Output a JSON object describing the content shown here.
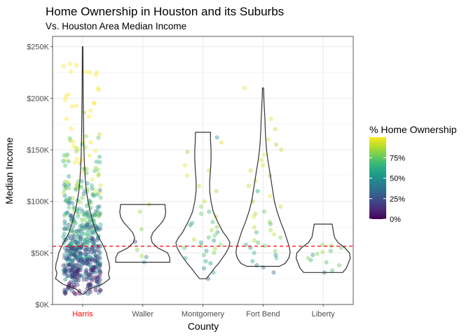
{
  "chart_data": {
    "type": "scatter",
    "subtype": "jittered scatter with violin overlays",
    "title": "Home Ownership in Houston and its Suburbs",
    "subtitle": "Vs. Houston Area Median Income",
    "xlabel": "County",
    "ylabel": "Median Income",
    "categories": [
      "Harris",
      "Waller",
      "Montgomery",
      "Fort Bend",
      "Liberty"
    ],
    "highlight_category": "Harris",
    "highlight_color": "#ff0000",
    "y_ticks": [
      {
        "value": 0,
        "label": "$0K"
      },
      {
        "value": 50000,
        "label": "$50K"
      },
      {
        "value": 100000,
        "label": "$100K"
      },
      {
        "value": 150000,
        "label": "$150K"
      },
      {
        "value": 200000,
        "label": "$200K"
      },
      {
        "value": 250000,
        "label": "$250K"
      }
    ],
    "ylim": [
      0,
      260000
    ],
    "reference_line": {
      "value": 56500,
      "style": "dashed",
      "color": "#ff0000"
    },
    "grid": true,
    "point_alpha": 0.4,
    "color_scale": {
      "name": "viridis",
      "title": "% Home Ownership",
      "range": [
        0,
        1
      ],
      "ticks": [
        {
          "value": 0.0,
          "label": "0%"
        },
        {
          "value": 0.25,
          "label": "25%"
        },
        {
          "value": 0.5,
          "label": "50%"
        },
        {
          "value": 0.75,
          "label": "75%"
        }
      ],
      "stops": [
        "#440154",
        "#482878",
        "#3e4a89",
        "#31688e",
        "#26828e",
        "#1f9e89",
        "#35b779",
        "#6ece58",
        "#b5de2b",
        "#fde725"
      ],
      "legend_placement": "right"
    },
    "violins": [
      {
        "category": "Harris",
        "min": 10000,
        "max": 250000,
        "density": [
          [
            10000,
            0.03
          ],
          [
            15000,
            0.25
          ],
          [
            20000,
            0.75
          ],
          [
            25000,
            1.0
          ],
          [
            30000,
            0.95
          ],
          [
            35000,
            1.0
          ],
          [
            40000,
            0.98
          ],
          [
            45000,
            0.92
          ],
          [
            50000,
            0.88
          ],
          [
            55000,
            0.8
          ],
          [
            60000,
            0.7
          ],
          [
            65000,
            0.6
          ],
          [
            70000,
            0.5
          ],
          [
            80000,
            0.38
          ],
          [
            90000,
            0.28
          ],
          [
            100000,
            0.2
          ],
          [
            110000,
            0.14
          ],
          [
            120000,
            0.1
          ],
          [
            140000,
            0.06
          ],
          [
            160000,
            0.04
          ],
          [
            180000,
            0.03
          ],
          [
            200000,
            0.02
          ],
          [
            225000,
            0.015
          ],
          [
            250000,
            0.01
          ]
        ]
      },
      {
        "category": "Waller",
        "min": 41000,
        "max": 97000,
        "density": [
          [
            41000,
            1.0
          ],
          [
            45000,
            1.0
          ],
          [
            50000,
            0.92
          ],
          [
            55000,
            0.55
          ],
          [
            60000,
            0.35
          ],
          [
            65000,
            0.3
          ],
          [
            70000,
            0.38
          ],
          [
            75000,
            0.55
          ],
          [
            80000,
            0.72
          ],
          [
            85000,
            0.82
          ],
          [
            90000,
            0.85
          ],
          [
            94000,
            0.83
          ],
          [
            97000,
            0.82
          ]
        ]
      },
      {
        "category": "Montgomery",
        "min": 25000,
        "max": 167000,
        "density": [
          [
            25000,
            0.12
          ],
          [
            30000,
            0.28
          ],
          [
            35000,
            0.42
          ],
          [
            40000,
            0.58
          ],
          [
            45000,
            0.72
          ],
          [
            50000,
            0.85
          ],
          [
            55000,
            0.95
          ],
          [
            60000,
            1.0
          ],
          [
            65000,
            0.9
          ],
          [
            70000,
            0.75
          ],
          [
            80000,
            0.55
          ],
          [
            90000,
            0.38
          ],
          [
            100000,
            0.3
          ],
          [
            110000,
            0.25
          ],
          [
            120000,
            0.25
          ],
          [
            130000,
            0.28
          ],
          [
            140000,
            0.3
          ],
          [
            150000,
            0.3
          ],
          [
            160000,
            0.28
          ],
          [
            167000,
            0.28
          ]
        ]
      },
      {
        "category": "Fort Bend",
        "min": 37000,
        "max": 210000,
        "density": [
          [
            37000,
            0.6
          ],
          [
            40000,
            0.82
          ],
          [
            45000,
            0.95
          ],
          [
            50000,
            1.0
          ],
          [
            55000,
            0.98
          ],
          [
            60000,
            0.92
          ],
          [
            70000,
            0.8
          ],
          [
            80000,
            0.65
          ],
          [
            90000,
            0.52
          ],
          [
            100000,
            0.42
          ],
          [
            110000,
            0.36
          ],
          [
            120000,
            0.3
          ],
          [
            130000,
            0.24
          ],
          [
            140000,
            0.18
          ],
          [
            150000,
            0.13
          ],
          [
            160000,
            0.1
          ],
          [
            170000,
            0.08
          ],
          [
            180000,
            0.07
          ],
          [
            190000,
            0.05
          ],
          [
            200000,
            0.03
          ],
          [
            210000,
            0.02
          ]
        ]
      },
      {
        "category": "Liberty",
        "min": 31000,
        "max": 78000,
        "density": [
          [
            31000,
            0.72
          ],
          [
            35000,
            0.85
          ],
          [
            40000,
            0.93
          ],
          [
            45000,
            1.0
          ],
          [
            50000,
            0.97
          ],
          [
            55000,
            0.8
          ],
          [
            60000,
            0.55
          ],
          [
            65000,
            0.42
          ],
          [
            70000,
            0.38
          ],
          [
            75000,
            0.35
          ],
          [
            78000,
            0.33
          ]
        ]
      }
    ],
    "points": [
      {
        "county": "Harris",
        "jitter": [
          -0.32,
          0.3
        ],
        "counts": [
          {
            "y": [
              10000,
              25000
            ],
            "n": 55
          },
          {
            "y": [
              25000,
              45000
            ],
            "n": 150
          },
          {
            "y": [
              45000,
              65000
            ],
            "n": 130
          },
          {
            "y": [
              65000,
              90000
            ],
            "n": 100
          },
          {
            "y": [
              90000,
              120000
            ],
            "n": 65
          },
          {
            "y": [
              120000,
              160000
            ],
            "n": 38
          },
          {
            "y": [
              160000,
              210000
            ],
            "n": 18
          },
          {
            "y": [
              210000,
              250000
            ],
            "n": 8
          }
        ],
        "ownership_vs_income": "increasing"
      },
      {
        "county": "Waller",
        "values": [
          [
            41000,
            0.55
          ],
          [
            46000,
            0.45
          ],
          [
            47000,
            0.85
          ],
          [
            53000,
            0.8
          ],
          [
            61000,
            0.2
          ],
          [
            73000,
            0.8
          ],
          [
            90000,
            0.85
          ],
          [
            97000,
            0.9
          ]
        ]
      },
      {
        "county": "Montgomery",
        "values": [
          [
            25000,
            0.25
          ],
          [
            31000,
            0.6
          ],
          [
            35000,
            0.5
          ],
          [
            40000,
            0.55
          ],
          [
            42000,
            0.6
          ],
          [
            45000,
            0.65
          ],
          [
            48000,
            0.7
          ],
          [
            50000,
            0.8
          ],
          [
            52000,
            0.55
          ],
          [
            54000,
            0.85
          ],
          [
            55000,
            0.7
          ],
          [
            57000,
            0.75
          ],
          [
            58000,
            0.8
          ],
          [
            60000,
            0.6
          ],
          [
            62000,
            0.5
          ],
          [
            63000,
            0.88
          ],
          [
            65000,
            0.7
          ],
          [
            67000,
            0.75
          ],
          [
            70000,
            0.6
          ],
          [
            72000,
            0.85
          ],
          [
            75000,
            0.8
          ],
          [
            77000,
            0.5
          ],
          [
            79000,
            0.6
          ],
          [
            80000,
            0.7
          ],
          [
            85000,
            0.9
          ],
          [
            88000,
            0.75
          ],
          [
            90000,
            0.65
          ],
          [
            95000,
            0.8
          ],
          [
            100000,
            0.9
          ],
          [
            110000,
            0.85
          ],
          [
            115000,
            0.9
          ],
          [
            125000,
            0.95
          ],
          [
            130000,
            0.9
          ],
          [
            135000,
            0.95
          ],
          [
            148000,
            0.85
          ],
          [
            157000,
            0.95
          ],
          [
            162000,
            0.55
          ]
        ]
      },
      {
        "county": "Fort Bend",
        "values": [
          [
            31000,
            0.3
          ],
          [
            36000,
            0.4
          ],
          [
            38000,
            0.45
          ],
          [
            42000,
            0.6
          ],
          [
            45000,
            0.7
          ],
          [
            48000,
            0.5
          ],
          [
            50000,
            0.65
          ],
          [
            52000,
            0.8
          ],
          [
            55000,
            0.55
          ],
          [
            57000,
            0.75
          ],
          [
            58000,
            0.6
          ],
          [
            60000,
            0.7
          ],
          [
            62000,
            0.85
          ],
          [
            65000,
            0.8
          ],
          [
            68000,
            0.9
          ],
          [
            70000,
            0.65
          ],
          [
            72000,
            0.85
          ],
          [
            75000,
            0.9
          ],
          [
            78000,
            0.7
          ],
          [
            80000,
            0.8
          ],
          [
            85000,
            0.95
          ],
          [
            88000,
            0.85
          ],
          [
            90000,
            0.75
          ],
          [
            95000,
            0.9
          ],
          [
            100000,
            0.85
          ],
          [
            105000,
            0.95
          ],
          [
            110000,
            0.6
          ],
          [
            115000,
            0.9
          ],
          [
            120000,
            0.95
          ],
          [
            125000,
            0.85
          ],
          [
            130000,
            0.9
          ],
          [
            135000,
            0.95
          ],
          [
            140000,
            0.9
          ],
          [
            145000,
            0.95
          ],
          [
            150000,
            0.9
          ],
          [
            155000,
            0.85
          ],
          [
            160000,
            0.95
          ],
          [
            170000,
            0.9
          ],
          [
            180000,
            0.95
          ],
          [
            210000,
            0.95
          ]
        ]
      },
      {
        "county": "Liberty",
        "values": [
          [
            31000,
            0.4
          ],
          [
            33000,
            0.7
          ],
          [
            38000,
            0.75
          ],
          [
            41000,
            0.7
          ],
          [
            43000,
            0.65
          ],
          [
            45000,
            0.8
          ],
          [
            48000,
            0.5
          ],
          [
            49000,
            0.8
          ],
          [
            51000,
            0.85
          ],
          [
            52000,
            0.7
          ],
          [
            55000,
            0.75
          ],
          [
            57000,
            0.85
          ],
          [
            58000,
            0.8
          ]
        ]
      }
    ]
  }
}
